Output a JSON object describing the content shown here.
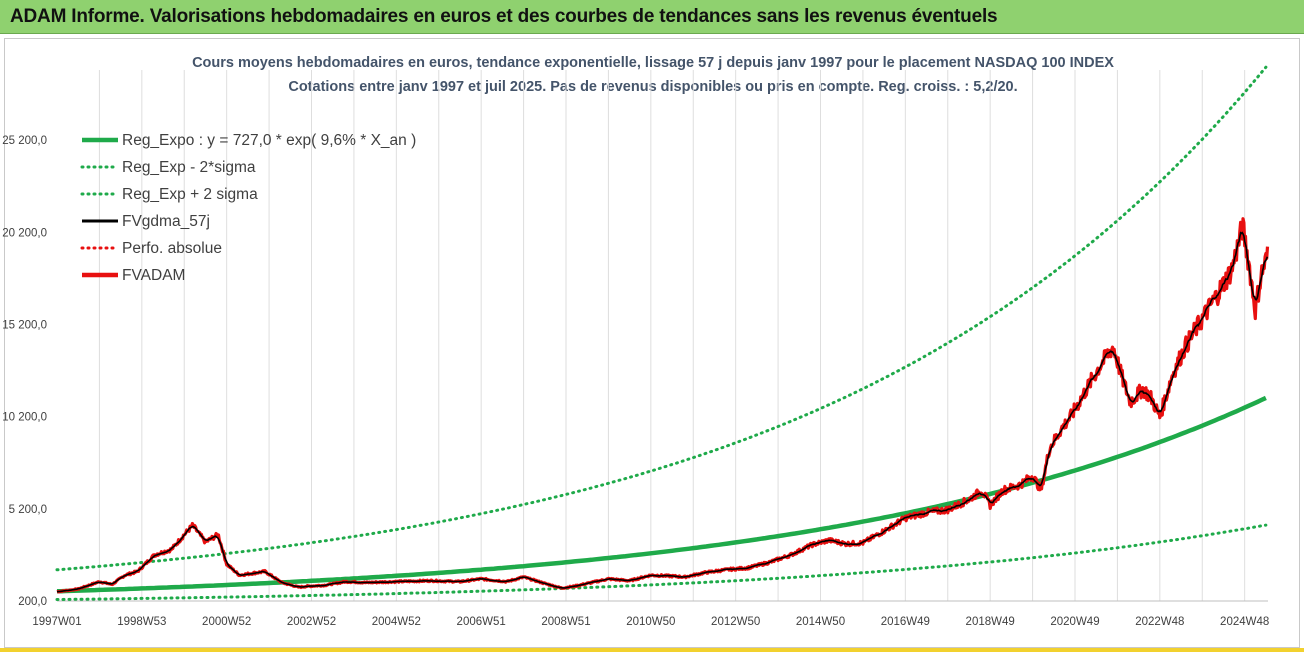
{
  "header": {
    "title": "ADAM Informe. Valorisations hebdomadaires en euros et des courbes de tendances sans les revenus éventuels"
  },
  "colors": {
    "header_bg": "#8fd16f",
    "trend": "#1faa4a",
    "price": "#e81010",
    "smooth": "#000000"
  },
  "chart_data": {
    "type": "line",
    "title": "Cours moyens hebdomadaires en euros, tendance exponentielle, lissage 57 j depuis janv 1997 pour le placement NASDAQ 100 INDEX",
    "subtitle": "Cotations entre janv 1997 et juil 2025. Pas de revenus disponibles ou pris en compte. Reg. croiss. : 5,2/20.",
    "xlabel": "",
    "ylabel": "",
    "ylim": [
      200,
      29000
    ],
    "x_range": [
      1997.0,
      2025.55
    ],
    "y_ticks": [
      "200,0",
      "5 200,0",
      "10 200,0",
      "15 200,0",
      "20 200,0",
      "25 200,0"
    ],
    "y_tick_values": [
      200,
      5200,
      10200,
      15200,
      20200,
      25200
    ],
    "x_tick_labels": [
      "1997W01",
      "1998W53",
      "2000W52",
      "2002W52",
      "2004W52",
      "2006W51",
      "2008W51",
      "2010W50",
      "2012W50",
      "2014W50",
      "2016W49",
      "2018W49",
      "2020W49",
      "2022W48",
      "2024W48"
    ],
    "x_tick_years": [
      1997.0,
      1999.0,
      2001.0,
      2003.0,
      2005.0,
      2007.0,
      2009.0,
      2011.0,
      2013.0,
      2015.0,
      2017.0,
      2019.0,
      2021.0,
      2023.0,
      2025.0
    ],
    "grid": "vertical",
    "legend_position": "top-left",
    "series": [
      {
        "name": "Reg_Expo : y = 727,0 * exp( 9,6% *  X_an )",
        "style": "solid-thick",
        "color": "#1faa4a",
        "kind": "trend",
        "a": 727.0,
        "r": 0.096
      },
      {
        "name": "Reg_Exp - 2*sigma",
        "style": "dotted",
        "color": "#1faa4a",
        "kind": "trend",
        "a": 280.0,
        "r": 0.096
      },
      {
        "name": "Reg_Exp + 2 sigma",
        "style": "dotted",
        "color": "#1faa4a",
        "kind": "trend",
        "a": 1890.0,
        "r": 0.096
      },
      {
        "name": "FVgdma_57j",
        "style": "solid",
        "color": "#000000",
        "kind": "smooth"
      },
      {
        "name": "Perfo. absolue",
        "style": "dotted",
        "color": "#e81010",
        "kind": "none"
      },
      {
        "name": "FVADAM",
        "style": "solid-thick",
        "color": "#e81010",
        "kind": "price"
      }
    ],
    "price_points": {
      "x": [
        1997.0,
        1997.5,
        1998.0,
        1998.3,
        1998.6,
        1998.9,
        1999.3,
        1999.7,
        2000.0,
        2000.2,
        2000.5,
        2000.8,
        2001.0,
        2001.3,
        2001.6,
        2001.9,
        2002.3,
        2002.7,
        2002.9,
        2003.3,
        2003.8,
        2004.3,
        2005.0,
        2005.8,
        2006.5,
        2007.0,
        2007.6,
        2008.0,
        2008.5,
        2008.9,
        2009.2,
        2009.6,
        2010.0,
        2010.5,
        2011.0,
        2011.5,
        2011.8,
        2012.3,
        2012.8,
        2013.3,
        2013.8,
        2014.3,
        2014.8,
        2015.2,
        2015.6,
        2016.0,
        2016.5,
        2017.0,
        2017.5,
        2018.0,
        2018.5,
        2018.8,
        2019.0,
        2019.3,
        2019.7,
        2020.0,
        2020.2,
        2020.4,
        2020.7,
        2020.9,
        2021.3,
        2021.6,
        2021.9,
        2022.1,
        2022.3,
        2022.6,
        2022.8,
        2023.0,
        2023.3,
        2023.6,
        2024.0,
        2024.4,
        2024.7,
        2024.95,
        2025.1,
        2025.25,
        2025.4,
        2025.55
      ],
      "y": [
        700,
        850,
        1250,
        1100,
        1600,
        1800,
        2700,
        3000,
        3800,
        4300,
        3400,
        3800,
        2200,
        1600,
        1700,
        1800,
        1200,
        950,
        1000,
        1050,
        1250,
        1200,
        1250,
        1300,
        1250,
        1400,
        1250,
        1500,
        1150,
        900,
        1000,
        1200,
        1400,
        1300,
        1600,
        1550,
        1500,
        1750,
        1900,
        2000,
        2300,
        2700,
        3250,
        3500,
        3300,
        3350,
        4000,
        4700,
        5000,
        5150,
        5700,
        6200,
        5400,
        6200,
        6500,
        7000,
        6200,
        8500,
        9600,
        10200,
        11800,
        13000,
        14000,
        12400,
        11000,
        11700,
        11200,
        10200,
        12500,
        14000,
        15500,
        17000,
        18200,
        20500,
        18500,
        16000,
        18000,
        19000
      ]
    }
  }
}
